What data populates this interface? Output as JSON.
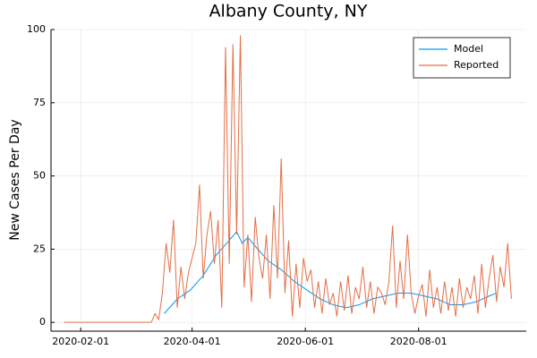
{
  "chart_data": {
    "type": "line",
    "title": "Albany County, NY",
    "y_label": "New Cases Per Day",
    "xlim": [
      "2020-01-16",
      "2020-09-28"
    ],
    "xticks": [
      "2020-02-01",
      "2020-04-01",
      "2020-06-01",
      "2020-08-01"
    ],
    "ylim": [
      -3,
      100
    ],
    "yticks": [
      0,
      25,
      50,
      75,
      100
    ],
    "grid": true,
    "legend": "top-right",
    "series": [
      {
        "name": "Model",
        "color": "#009af9",
        "x": [
          "2020-03-17",
          "2020-03-24",
          "2020-03-31",
          "2020-04-07",
          "2020-04-14",
          "2020-04-21",
          "2020-04-25",
          "2020-04-28",
          "2020-05-01",
          "2020-05-05",
          "2020-05-12",
          "2020-05-19",
          "2020-05-26",
          "2020-06-02",
          "2020-06-09",
          "2020-06-16",
          "2020-06-23",
          "2020-06-30",
          "2020-07-07",
          "2020-07-14",
          "2020-07-21",
          "2020-07-28",
          "2020-08-04",
          "2020-08-11",
          "2020-08-18",
          "2020-08-25",
          "2020-09-01",
          "2020-09-08",
          "2020-09-12"
        ],
        "values": [
          3,
          8,
          11,
          16,
          23,
          28,
          31,
          27,
          29,
          26,
          21,
          18,
          14,
          11,
          8,
          6,
          5,
          6,
          8,
          9,
          10,
          10,
          9,
          8,
          6,
          6,
          7,
          9,
          10
        ]
      },
      {
        "name": "Reported",
        "color": "#e26f46",
        "x": [
          "2020-01-23",
          "2020-03-10",
          "2020-03-12",
          "2020-03-14",
          "2020-03-16",
          "2020-03-18",
          "2020-03-20",
          "2020-03-22",
          "2020-03-24",
          "2020-03-26",
          "2020-03-28",
          "2020-03-30",
          "2020-04-01",
          "2020-04-03",
          "2020-04-05",
          "2020-04-07",
          "2020-04-09",
          "2020-04-11",
          "2020-04-13",
          "2020-04-15",
          "2020-04-17",
          "2020-04-19",
          "2020-04-21",
          "2020-04-23",
          "2020-04-25",
          "2020-04-27",
          "2020-04-29",
          "2020-05-01",
          "2020-05-03",
          "2020-05-05",
          "2020-05-07",
          "2020-05-09",
          "2020-05-11",
          "2020-05-13",
          "2020-05-15",
          "2020-05-17",
          "2020-05-19",
          "2020-05-21",
          "2020-05-23",
          "2020-05-25",
          "2020-05-27",
          "2020-05-29",
          "2020-05-31",
          "2020-06-02",
          "2020-06-04",
          "2020-06-06",
          "2020-06-08",
          "2020-06-10",
          "2020-06-12",
          "2020-06-14",
          "2020-06-16",
          "2020-06-18",
          "2020-06-20",
          "2020-06-22",
          "2020-06-24",
          "2020-06-26",
          "2020-06-28",
          "2020-06-30",
          "2020-07-02",
          "2020-07-04",
          "2020-07-06",
          "2020-07-08",
          "2020-07-10",
          "2020-07-12",
          "2020-07-14",
          "2020-07-16",
          "2020-07-18",
          "2020-07-20",
          "2020-07-22",
          "2020-07-24",
          "2020-07-26",
          "2020-07-28",
          "2020-07-30",
          "2020-08-01",
          "2020-08-03",
          "2020-08-05",
          "2020-08-07",
          "2020-08-09",
          "2020-08-11",
          "2020-08-13",
          "2020-08-15",
          "2020-08-17",
          "2020-08-19",
          "2020-08-21",
          "2020-08-23",
          "2020-08-25",
          "2020-08-27",
          "2020-08-29",
          "2020-08-31",
          "2020-09-02",
          "2020-09-04",
          "2020-09-06",
          "2020-09-08",
          "2020-09-10",
          "2020-09-12",
          "2020-09-14",
          "2020-09-16",
          "2020-09-18",
          "2020-09-20"
        ],
        "values": [
          0,
          0,
          3,
          1,
          10,
          27,
          17,
          35,
          5,
          19,
          8,
          17,
          22,
          27,
          47,
          15,
          30,
          38,
          20,
          35,
          5,
          94,
          20,
          95,
          30,
          98,
          12,
          30,
          7,
          36,
          22,
          15,
          30,
          8,
          40,
          15,
          56,
          10,
          28,
          2,
          20,
          5,
          22,
          14,
          18,
          5,
          14,
          3,
          15,
          6,
          10,
          2,
          14,
          4,
          16,
          3,
          12,
          8,
          19,
          5,
          14,
          3,
          12,
          10,
          6,
          14,
          33,
          5,
          21,
          8,
          30,
          10,
          3,
          9,
          13,
          2,
          18,
          5,
          12,
          3,
          14,
          4,
          12,
          2,
          15,
          5,
          12,
          8,
          16,
          3,
          20,
          5,
          15,
          23,
          7,
          19,
          12,
          27,
          8
        ]
      }
    ]
  }
}
